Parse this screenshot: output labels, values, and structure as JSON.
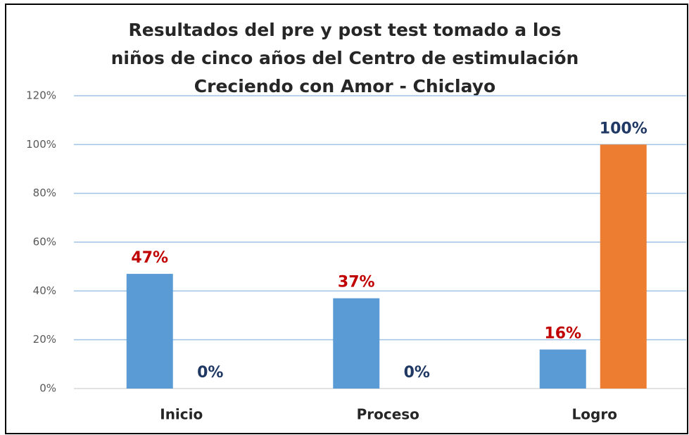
{
  "chart_data": {
    "type": "bar",
    "title": [
      "Resultados del pre y post test tomado a los",
      "niños de cinco años del Centro de estimulación",
      "Creciendo con Amor - Chiclayo"
    ],
    "categories": [
      "Inicio",
      "Proceso",
      "Logro"
    ],
    "series": [
      {
        "color": "#5b9bd5",
        "label_color": "#c00000",
        "values": [
          47,
          37,
          16
        ],
        "value_labels": [
          "47%",
          "37%",
          "16%"
        ]
      },
      {
        "color": "#ed7d31",
        "label_color": "#1f3864",
        "values": [
          0,
          0,
          100
        ],
        "value_labels": [
          "0%",
          "0%",
          "100%"
        ]
      }
    ],
    "ylim": [
      0,
      120
    ],
    "yticks": [
      {
        "value": 0,
        "label": "0%"
      },
      {
        "value": 20,
        "label": "20%"
      },
      {
        "value": 40,
        "label": "40%"
      },
      {
        "value": 60,
        "label": "60%"
      },
      {
        "value": 80,
        "label": "80%"
      },
      {
        "value": 100,
        "label": "100%"
      },
      {
        "value": 120,
        "label": "120%"
      }
    ],
    "grid": true
  }
}
